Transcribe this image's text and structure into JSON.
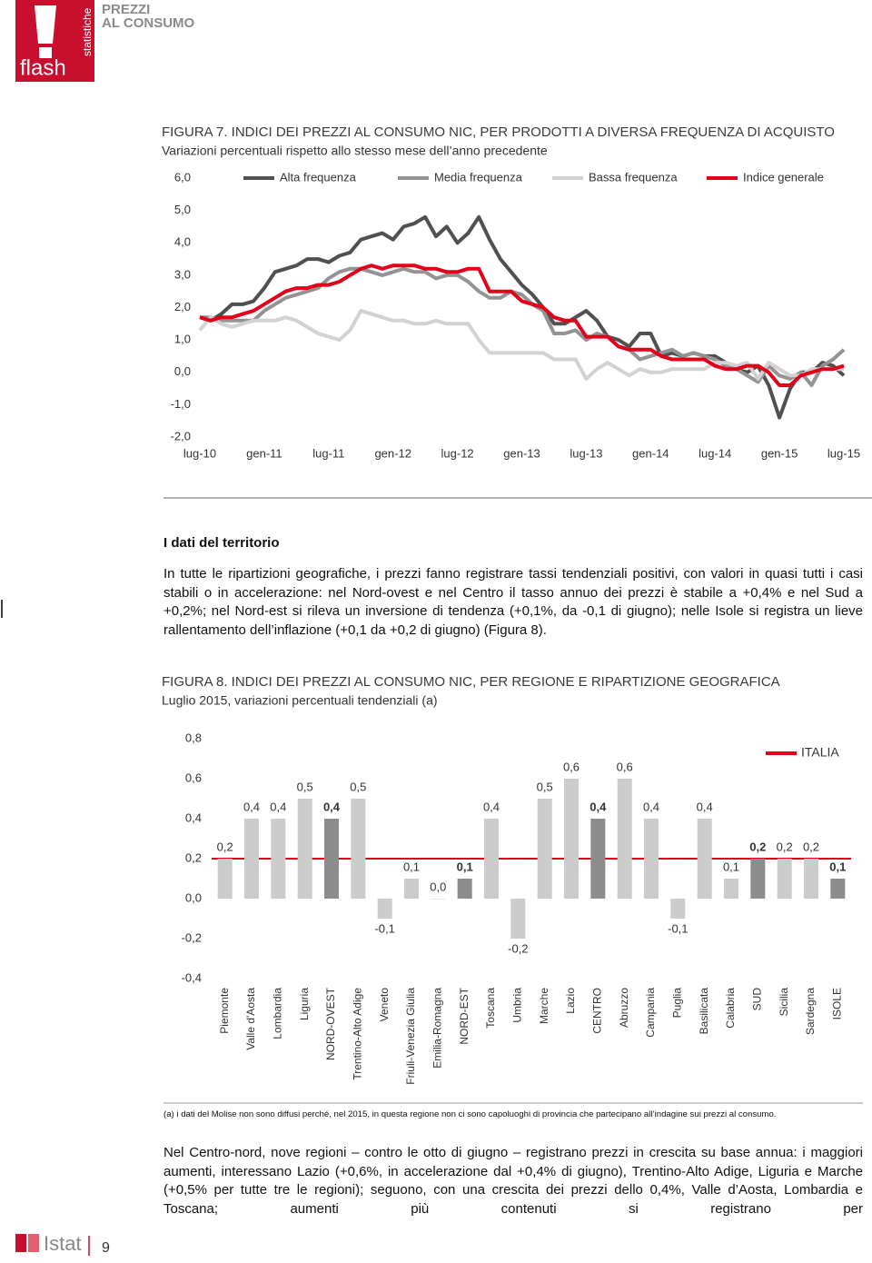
{
  "header": {
    "logo_text": "flash",
    "logo_side": "statistiche",
    "section_lines": [
      "PREZZI",
      "AL CONSUMO"
    ]
  },
  "chart_data": [
    {
      "type": "line",
      "title": "FIGURA 7. INDICI DEI PREZZI AL CONSUMO NIC, PER PRODOTTI A DIVERSA FREQUENZA DI ACQUISTO",
      "subtitle": "Variazioni percentuali rispetto allo stesso mese dell’anno precedente",
      "categories": [
        "lug-10",
        null,
        null,
        null,
        null,
        null,
        "gen-11",
        null,
        null,
        null,
        null,
        null,
        "lug-11",
        null,
        null,
        null,
        null,
        null,
        "gen-12",
        null,
        null,
        null,
        null,
        null,
        "lug-12",
        null,
        null,
        null,
        null,
        null,
        "gen-13",
        null,
        null,
        null,
        null,
        null,
        "lug-13",
        null,
        null,
        null,
        null,
        null,
        "gen-14",
        null,
        null,
        null,
        null,
        null,
        "lug-14",
        null,
        null,
        null,
        null,
        null,
        "gen-15",
        null,
        null,
        null,
        null,
        null,
        "lug-15"
      ],
      "series": [
        {
          "name": "Alta frequenza",
          "color": "#505050",
          "values": [
            1.7,
            1.6,
            1.8,
            2.1,
            2.1,
            2.2,
            2.6,
            3.1,
            3.2,
            3.3,
            3.5,
            3.5,
            3.4,
            3.6,
            3.7,
            4.1,
            4.2,
            4.3,
            4.1,
            4.5,
            4.6,
            4.8,
            4.2,
            4.5,
            4.0,
            4.3,
            4.8,
            4.1,
            3.5,
            3.1,
            2.7,
            2.4,
            2.0,
            1.5,
            1.5,
            1.7,
            1.9,
            1.6,
            1.1,
            1.0,
            0.8,
            1.2,
            1.2,
            0.5,
            0.6,
            0.5,
            0.6,
            0.5,
            0.5,
            0.3,
            0.1,
            0.0,
            0.2,
            -0.4,
            -1.4,
            -0.5,
            0.0,
            0.0,
            0.3,
            0.2,
            -0.1
          ]
        },
        {
          "name": "Media frequenza",
          "color": "#939393",
          "values": [
            1.7,
            1.7,
            1.6,
            1.6,
            1.6,
            1.6,
            1.9,
            2.1,
            2.3,
            2.4,
            2.5,
            2.6,
            2.9,
            3.1,
            3.2,
            3.2,
            3.1,
            3.0,
            3.1,
            3.2,
            3.1,
            3.1,
            2.9,
            3.0,
            3.0,
            2.8,
            2.5,
            2.3,
            2.3,
            2.5,
            2.4,
            2.1,
            1.9,
            1.2,
            1.2,
            1.3,
            1.0,
            1.2,
            1.1,
            0.8,
            0.7,
            0.4,
            0.5,
            0.6,
            0.7,
            0.5,
            0.6,
            0.5,
            0.4,
            0.2,
            0.1,
            -0.1,
            -0.3,
            0.2,
            -0.1,
            -0.2,
            0.0,
            -0.4,
            0.2,
            0.4,
            0.7
          ]
        },
        {
          "name": "Bassa frequenza",
          "color": "#d2d2d2",
          "values": [
            1.3,
            1.7,
            1.5,
            1.4,
            1.5,
            1.6,
            1.6,
            1.6,
            1.7,
            1.6,
            1.4,
            1.2,
            1.1,
            1.0,
            1.3,
            1.9,
            1.8,
            1.7,
            1.6,
            1.6,
            1.5,
            1.5,
            1.6,
            1.5,
            1.5,
            1.5,
            1.0,
            0.6,
            0.6,
            0.6,
            0.6,
            0.6,
            0.6,
            0.4,
            0.4,
            0.4,
            -0.2,
            0.1,
            0.3,
            0.1,
            -0.1,
            0.1,
            0.0,
            0.0,
            0.1,
            0.1,
            0.1,
            0.1,
            0.3,
            0.3,
            0.2,
            0.3,
            -0.2,
            0.3,
            0.1,
            -0.1,
            -0.1,
            0.1,
            0.1,
            0.1,
            0.1
          ]
        },
        {
          "name": "Indice generale",
          "color": "#e2001a",
          "values": [
            1.7,
            1.6,
            1.7,
            1.7,
            1.8,
            1.9,
            2.1,
            2.3,
            2.5,
            2.6,
            2.6,
            2.7,
            2.7,
            2.8,
            3.0,
            3.2,
            3.3,
            3.2,
            3.3,
            3.3,
            3.3,
            3.2,
            3.2,
            3.1,
            3.1,
            3.2,
            3.2,
            2.5,
            2.5,
            2.5,
            2.2,
            2.1,
            2.0,
            1.7,
            1.6,
            1.6,
            1.1,
            1.1,
            1.1,
            0.8,
            0.7,
            0.7,
            0.7,
            0.5,
            0.4,
            0.4,
            0.4,
            0.4,
            0.2,
            0.1,
            0.1,
            0.2,
            0.2,
            0.0,
            -0.4,
            -0.4,
            -0.1,
            0.0,
            0.1,
            0.1,
            0.2
          ]
        }
      ],
      "ylim": [
        -2,
        6
      ],
      "yticks": [
        {
          "value": 6,
          "label": "6,0"
        },
        {
          "value": 5,
          "label": "5,0"
        },
        {
          "value": 4,
          "label": "4,0"
        },
        {
          "value": 3,
          "label": "3,0"
        },
        {
          "value": 2,
          "label": "2,0"
        },
        {
          "value": 1,
          "label": "1,0"
        },
        {
          "value": 0,
          "label": "0,0"
        },
        {
          "value": -1,
          "label": "-1,0"
        },
        {
          "value": -2,
          "label": "-2,0"
        }
      ],
      "legend": "top"
    },
    {
      "type": "bar",
      "title": "FIGURA 8. INDICI DEI PREZZI AL CONSUMO NIC, PER REGIONE E RIPARTIZIONE GEOGRAFICA",
      "subtitle": "Luglio 2015, variazioni percentuali tendenziali (a)",
      "categories": [
        "Piemonte",
        "Valle d'Aosta",
        "Lombardia",
        "Liguria",
        "NORD-OVEST",
        "Trentino-Alto Adige",
        "Veneto",
        "Friuli-Venezia Giulia",
        "Emilia-Romagna",
        "NORD-EST",
        "Toscana",
        "Umbria",
        "Marche",
        "Lazio",
        "CENTRO",
        "Abruzzo",
        "Campania",
        "Puglia",
        "Basilicata",
        "Calabria",
        "SUD",
        "Sicilia",
        "Sardegna",
        "ISOLE"
      ],
      "values": [
        0.2,
        0.4,
        0.4,
        0.5,
        0.4,
        0.5,
        -0.1,
        0.1,
        0.0,
        0.1,
        0.4,
        -0.2,
        0.5,
        0.6,
        0.4,
        0.6,
        0.4,
        -0.1,
        0.4,
        0.1,
        0.2,
        0.2,
        0.2,
        0.1
      ],
      "value_labels": [
        "0,2",
        "0,4",
        "0,4",
        "0,5",
        "0,4",
        "0,5",
        "-0,1",
        "0,1",
        "0,0",
        "0,1",
        "0,4",
        "-0,2",
        "0,5",
        "0,6",
        "0,4",
        "0,6",
        "0,4",
        "-0,1",
        "0,4",
        "0,1",
        "0,2",
        "0,2",
        "0,2",
        "0,1"
      ],
      "colors": [
        "#cccccc",
        "#cccccc",
        "#cccccc",
        "#cccccc",
        "#8c8c8c",
        "#cccccc",
        "#cccccc",
        "#cccccc",
        "#cccccc",
        "#8c8c8c",
        "#cccccc",
        "#cccccc",
        "#cccccc",
        "#cccccc",
        "#8c8c8c",
        "#cccccc",
        "#cccccc",
        "#cccccc",
        "#cccccc",
        "#cccccc",
        "#8c8c8c",
        "#cccccc",
        "#cccccc",
        "#8c8c8c"
      ],
      "reference": {
        "name": "ITALIA",
        "value": 0.2,
        "color": "#e2001a"
      },
      "ylim": [
        -0.4,
        0.8
      ],
      "yticks": [
        {
          "value": 0.8,
          "label": "0,8"
        },
        {
          "value": 0.6,
          "label": "0,6"
        },
        {
          "value": 0.4,
          "label": "0,4"
        },
        {
          "value": 0.2,
          "label": "0,2"
        },
        {
          "value": 0,
          "label": "0,0"
        },
        {
          "value": -0.2,
          "label": "-0,2"
        },
        {
          "value": -0.4,
          "label": "-0,4"
        }
      ]
    }
  ],
  "section_heading": "I dati del territorio",
  "paragraphs": [
    "In tutte le ripartizioni geografiche, i prezzi fanno registrare tassi tendenziali positivi, con valori in quasi tutti i casi stabili o in accelerazione: nel Nord-ovest e nel Centro il tasso annuo dei prezzi è stabile a +0,4% e nel Sud a +0,2%; nel Nord-est si rileva un inversione di tendenza (+0,1%, da -0,1 di giugno); nelle Isole si registra un lieve rallentamento dell’inflazione (+0,1 da +0,2 di giugno) (Figura 8).",
    "Nel Centro-nord, nove regioni – contro le otto di giugno – registrano prezzi in crescita su base annua: i maggiori aumenti, interessano Lazio (+0,6%, in accelerazione dal +0,4% di giugno), Trentino-Alto Adige, Liguria e Marche (+0,5% per tutte tre le regioni); seguono, con una crescita dei prezzi dello 0,4%, Valle d’Aosta, Lombardia e Toscana; aumenti più contenuti si registrano per"
  ],
  "footnote": "(a) i dati del Molise non sono diffusi perché, nel 2015, in questa regione non ci sono capoluoghi di provincia che partecipano all’indagine sui prezzi al consumo.",
  "footer": {
    "brand": "Istat",
    "page": 9
  }
}
